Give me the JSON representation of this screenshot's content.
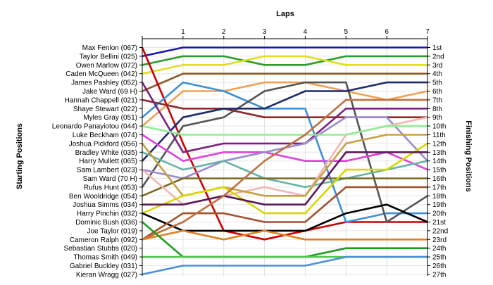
{
  "chart_data": {
    "type": "line",
    "title": "Laps",
    "ylabel_left": "Starting Positions",
    "ylabel_right": "Finishing Positions",
    "x": [
      0,
      1,
      2,
      3,
      4,
      5,
      6,
      7
    ],
    "x_tick_labels": [
      "1",
      "2",
      "3",
      "4",
      "5",
      "6",
      "7"
    ],
    "y_range": [
      1,
      27
    ],
    "y_inverted": true,
    "grid": true,
    "start_labels": [
      "Max Fenlon (067)",
      "Taylor Bellini (025)",
      "Owen Marlow (072)",
      "Caden McQueen (042)",
      "James Pashley (052)",
      "Jake Ward (69 H)",
      "Hannah Chappell (021)",
      "Shaye Stewart (022)",
      "Myles Gray (051)",
      "Leonardo Panayiotou (044)",
      "Luke Beckham (074)",
      "Joshua Pickford (056)",
      "Bradley White (035)",
      "Harry Mullett (065)",
      "Sam Lambert (023)",
      "Sam Ward (70 H)",
      "Rufus Hunt (053)",
      "Ben Wooldridge (054)",
      "Joshua Simms (034)",
      "Harry Pinchin (032)",
      "Dominic Bush (036)",
      "Joe Taylor (019)",
      "Cameron Ralph (092)",
      "Sebastian Stubbs (020)",
      "Thomas Smith (049)",
      "Gabriel Buckley (031)",
      "Kieran Wragg (027)"
    ],
    "finish_labels": [
      "1st",
      "2nd",
      "3rd",
      "4th",
      "5th",
      "6th",
      "7th",
      "8th",
      "9th",
      "10th",
      "11th",
      "12th",
      "13th",
      "14th",
      "15th",
      "16th",
      "17th",
      "18th",
      "19th",
      "20th",
      "21st",
      "22nd",
      "23rd",
      "24th",
      "25th",
      "26th",
      "27th"
    ],
    "series": [
      {
        "color": "#1a1aa8",
        "positions": [
          2,
          1,
          1,
          1,
          1,
          1,
          1,
          1
        ]
      },
      {
        "color": "#2a9d2a",
        "positions": [
          3,
          2,
          2,
          3,
          3,
          2,
          2,
          2
        ]
      },
      {
        "color": "#e0e020",
        "positions": [
          4,
          3,
          3,
          2,
          2,
          3,
          3,
          3
        ]
      },
      {
        "color": "#8b5a2b",
        "positions": [
          6,
          4,
          4,
          4,
          4,
          4,
          4,
          4
        ]
      },
      {
        "color": "#f0a050",
        "positions": [
          10,
          6,
          6,
          5,
          5,
          6,
          7,
          6
        ]
      },
      {
        "color": "#cc0000",
        "positions": [
          1,
          12,
          22,
          23,
          22,
          21,
          21,
          21
        ]
      },
      {
        "color": "#3d8fd6",
        "positions": [
          9,
          5,
          6,
          8,
          8,
          21,
          20,
          20
        ]
      },
      {
        "color": "#555555",
        "positions": [
          17,
          10,
          9,
          6,
          5,
          5,
          21,
          18
        ]
      },
      {
        "color": "#8e2a2a",
        "positions": [
          7,
          8,
          8,
          9,
          9,
          9,
          9,
          9
        ]
      },
      {
        "color": "#1f2a6b",
        "positions": [
          14,
          9,
          8,
          8,
          6,
          6,
          5,
          5
        ]
      },
      {
        "color": "#7a2080",
        "positions": [
          5,
          13,
          12,
          12,
          12,
          8,
          8,
          8
        ]
      },
      {
        "color": "#e040e0",
        "positions": [
          11,
          14,
          13,
          13,
          14,
          14,
          13,
          15
        ]
      },
      {
        "color": "#9b8bd0",
        "positions": [
          15,
          16,
          14,
          13,
          12,
          9,
          9,
          14
        ]
      },
      {
        "color": "#66b3a8",
        "positions": [
          13,
          15,
          14,
          16,
          17,
          16,
          15,
          14
        ]
      },
      {
        "color": "#7a6a20",
        "positions": [
          18,
          16,
          16,
          16,
          16,
          16,
          16,
          16
        ]
      },
      {
        "color": "#f0b8b0",
        "positions": [
          15,
          19,
          18,
          17,
          18,
          11,
          10,
          9
        ]
      },
      {
        "color": "#90ee90",
        "positions": [
          10,
          11,
          11,
          11,
          11,
          11,
          10,
          10
        ]
      },
      {
        "color": "#c8a040",
        "positions": [
          12,
          18,
          17,
          18,
          18,
          12,
          11,
          11
        ]
      },
      {
        "color": "#d8d800",
        "positions": [
          20,
          18,
          17,
          20,
          20,
          15,
          15,
          12
        ]
      },
      {
        "color": "#5a1a5a",
        "positions": [
          19,
          19,
          18,
          19,
          19,
          13,
          13,
          13
        ]
      },
      {
        "color": "#000000",
        "positions": [
          20,
          22,
          22,
          22,
          22,
          20,
          19,
          21
        ]
      },
      {
        "color": "#a0522d",
        "positions": [
          23,
          20,
          20,
          21,
          21,
          17,
          17,
          17
        ]
      },
      {
        "color": "#c07040",
        "positions": [
          23,
          21,
          18,
          14,
          11,
          7,
          7,
          7
        ]
      },
      {
        "color": "#e08020",
        "positions": [
          23,
          22,
          23,
          22,
          23,
          23,
          23,
          23
        ]
      },
      {
        "color": "#1e9e1e",
        "positions": [
          21,
          25,
          25,
          25,
          25,
          24,
          24,
          24
        ]
      },
      {
        "color": "#50c850",
        "positions": [
          25,
          25,
          25,
          25,
          25,
          25,
          25,
          25
        ]
      },
      {
        "color": "#4a90d9",
        "positions": [
          27,
          26,
          26,
          26,
          26,
          25,
          25,
          25
        ]
      }
    ]
  }
}
